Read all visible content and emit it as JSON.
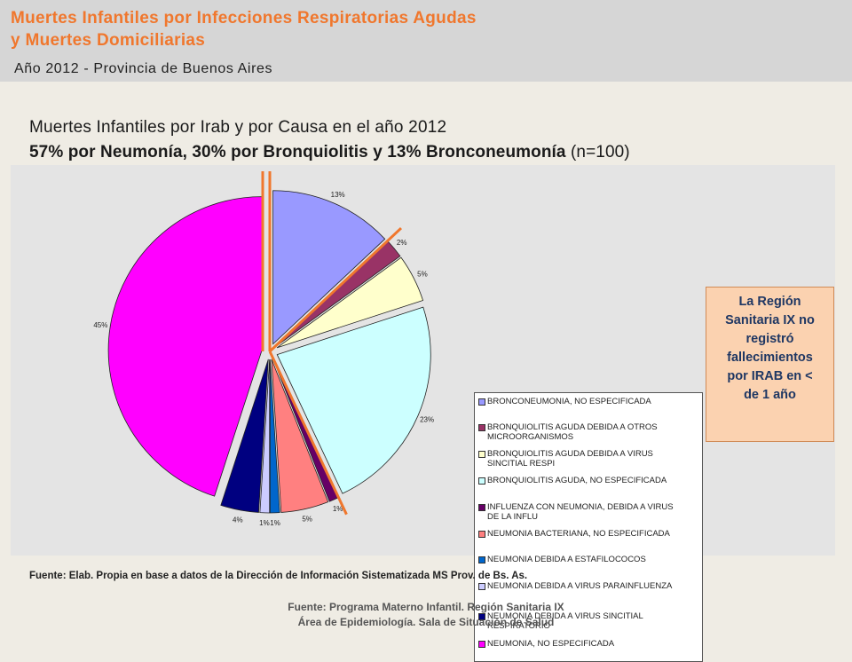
{
  "header": {
    "title_line1": "Muertes Infantiles por Infecciones Respiratorias Agudas",
    "title_line2": "y Muertes Domiciliarias",
    "subtitle": "Año 2012 - Provincia de Buenos Aires"
  },
  "chart_heading": {
    "line1": "Muertes Infantiles por Irab y por Causa en el año 2012",
    "line2_bold": "57% por Neumonía, 30% por Bronquiolitis y 13% Bronconeumonía",
    "line2_rest": " (n=100)"
  },
  "colors": {
    "accent_orange": "#f0772d",
    "callout_bg": "#fbd2b0",
    "callout_text": "#1f3763"
  },
  "chart_data": {
    "type": "pie",
    "start_angle_deg": 0,
    "direction": "clockwise",
    "slices": [
      {
        "name": "BRONCONEUMONIA, NO ESPECIFICADA",
        "value": 13,
        "label": "13%",
        "color": "#9999ff",
        "exploded": true
      },
      {
        "name": "BRONQUIOLITIS AGUDA DEBIDA A OTROS MICROORGANISMOS",
        "value": 2,
        "label": "2%",
        "color": "#993366",
        "exploded": true
      },
      {
        "name": "BRONQUIOLITIS AGUDA DEBIDA A VIRUS SINCITIAL RESPI",
        "value": 5,
        "label": "5%",
        "color": "#ffffcc",
        "exploded": true
      },
      {
        "name": "BRONQUIOLITIS AGUDA, NO ESPECIFICADA",
        "value": 23,
        "label": "23%",
        "color": "#ccffff",
        "exploded": true
      },
      {
        "name": "INFLUENZA CON NEUMONIA, DEBIDA A VIRUS DE LA INFLU",
        "value": 1,
        "label": "1%",
        "color": "#660066",
        "exploded": true
      },
      {
        "name": "NEUMONIA BACTERIANA, NO ESPECIFICADA",
        "value": 5,
        "label": "5%",
        "color": "#ff8080",
        "exploded": true
      },
      {
        "name": "NEUMONIA DEBIDA A ESTAFILOCOCOS",
        "value": 1,
        "label": "1%",
        "color": "#0066cc",
        "exploded": true
      },
      {
        "name": "NEUMONIA DEBIDA A VIRUS PARAINFLUENZA",
        "value": 1,
        "label": "1%",
        "color": "#ccccff",
        "exploded": true
      },
      {
        "name": "NEUMONIA DEBIDA A VIRUS SINCITIAL RESPIRATORIO",
        "value": 4,
        "label": "4%",
        "color": "#000080",
        "exploded": true
      },
      {
        "name": "NEUMONIA, NO ESPECIFICADA",
        "value": 45,
        "label": "45%",
        "color": "#ff00ff",
        "exploded": true
      }
    ],
    "legend": [
      [
        "BRONCONEUMONIA, NO ESPECIFICADA"
      ],
      [
        "BRONQUIOLITIS AGUDA DEBIDA A OTROS",
        "MICROORGANISMOS"
      ],
      [
        "BRONQUIOLITIS AGUDA DEBIDA A VIRUS",
        "SINCITIAL RESPI"
      ],
      [
        "BRONQUIOLITIS AGUDA, NO ESPECIFICADA"
      ],
      [
        "INFLUENZA CON NEUMONIA, DEBIDA A VIRUS",
        "DE LA INFLU"
      ],
      [
        "NEUMONIA BACTERIANA, NO ESPECIFICADA"
      ],
      [
        "NEUMONIA DEBIDA A ESTAFILOCOCOS"
      ],
      [
        "NEUMONIA DEBIDA A VIRUS PARAINFLUENZA"
      ],
      [
        "NEUMONIA DEBIDA A VIRUS SINCITIAL",
        "RESPIRATORIO"
      ],
      [
        "NEUMONIA, NO ESPECIFICADA"
      ]
    ],
    "legend_placement": "right"
  },
  "callout": {
    "lines": [
      "La Región",
      "Sanitaria IX no",
      "registró",
      "fallecimientos",
      "por IRAB en <",
      "de 1 año"
    ]
  },
  "source_note": "Fuente: Elab. Propia en base a datos de la Dirección de Información Sistematizada MS Prov. de Bs. As.",
  "footer": {
    "line1": "Fuente: Programa Materno Infantil. Región Sanitaria IX",
    "line2": "Área de Epidemiología. Sala de Situación de Salud"
  }
}
